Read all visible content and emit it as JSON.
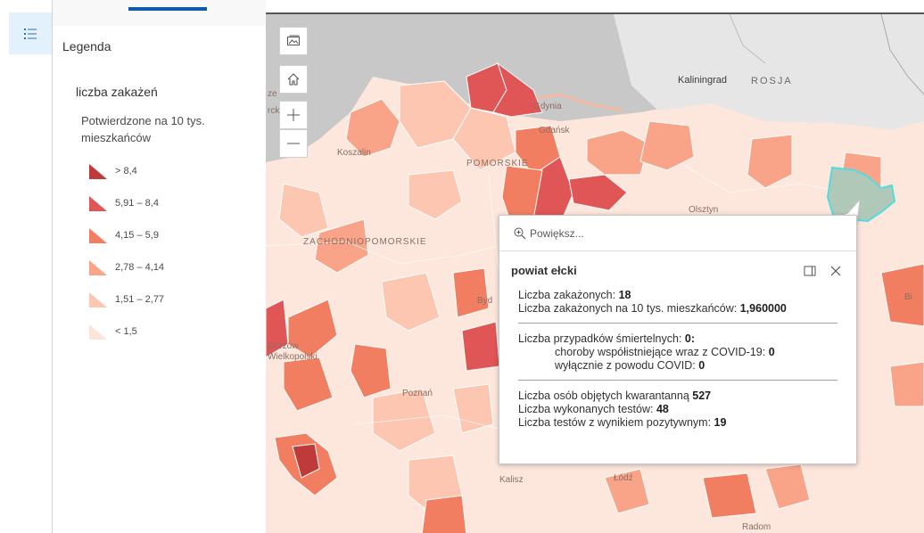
{
  "legend": {
    "title": "Legenda",
    "layer_title": "liczba zakażeń",
    "field_label": "Potwierdzone na 10 tys. mieszkańców",
    "classes": [
      {
        "label": "> 8,4",
        "color": "#bf3a3a"
      },
      {
        "label": "5,91 – 8,4",
        "color": "#e05656"
      },
      {
        "label": "4,15 – 5,9",
        "color": "#f27e62"
      },
      {
        "label": "2,78 – 4,14",
        "color": "#f9a488"
      },
      {
        "label": "1,51 – 2,77",
        "color": "#fcc6b1"
      },
      {
        "label": "< 1,5",
        "color": "#fde3d8"
      }
    ]
  },
  "map": {
    "labels": {
      "kaliningrad": "Kaliningrad",
      "rosja": "ROSJA",
      "gdynia": "Gdynia",
      "gdansk": "Gdańsk",
      "koszalin": "Koszalin",
      "pomorskie": "POMORSKIE",
      "olsztyn": "Olsztyn",
      "zachodniopomorskie": "ZACHODNIOPOMORSKIE",
      "bydgoszcz": "Byd",
      "poznan": "Poznań",
      "gorzow": "Gorzów",
      "wielkopolski": "Wielkopolski",
      "lodz": "Łódź",
      "kalisz": "Kalisz",
      "radom": "Radom",
      "ze": "ze",
      "rck": "rck",
      "bi": "Bi"
    },
    "colors": {
      "sea": "#c8c8c8",
      "land_neighbour": "#e6e6e6",
      "selected": "#b0c8b8",
      "selected_outline": "#4fdde0"
    }
  },
  "controls": {
    "basemap_icon": "image-icon",
    "home_icon": "home-icon",
    "zoom_in": "+",
    "zoom_out": "—"
  },
  "popup": {
    "search_placeholder": "Powiększ...",
    "title": "powiat ełcki",
    "lines": {
      "cases_label": "Liczba zakażonych: ",
      "cases_value": "18",
      "rate_label": "Liczba zakażonych na 10 tys. mieszkańców: ",
      "rate_value": "1,960000",
      "deaths_label": "Liczba przypadków śmiertelnych: ",
      "deaths_value": "0:",
      "comorbid_label": "choroby współistniejące wraz z COVID-19: ",
      "comorbid_value": "0",
      "covid_only_label": "wyłącznie z powodu COVID: ",
      "covid_only_value": "0",
      "quarantine_label": "Liczba osób objętych kwarantanną ",
      "quarantine_value": "527",
      "tests_label": "Liczba wykonanych testów: ",
      "tests_value": "48",
      "positive_label": "Liczba testów z wynikiem pozytywnym: ",
      "positive_value": "19"
    }
  }
}
